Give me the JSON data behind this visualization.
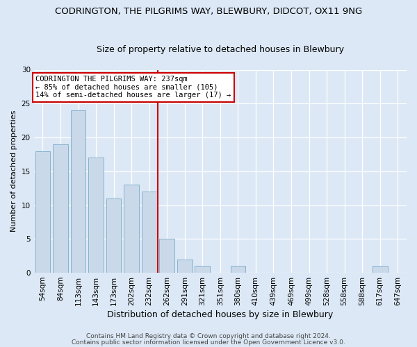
{
  "title": "CODRINGTON, THE PILGRIMS WAY, BLEWBURY, DIDCOT, OX11 9NG",
  "subtitle": "Size of property relative to detached houses in Blewbury",
  "xlabel": "Distribution of detached houses by size in Blewbury",
  "ylabel": "Number of detached properties",
  "categories": [
    "54sqm",
    "84sqm",
    "113sqm",
    "143sqm",
    "173sqm",
    "202sqm",
    "232sqm",
    "262sqm",
    "291sqm",
    "321sqm",
    "351sqm",
    "380sqm",
    "410sqm",
    "439sqm",
    "469sqm",
    "499sqm",
    "528sqm",
    "558sqm",
    "588sqm",
    "617sqm",
    "647sqm"
  ],
  "values": [
    18,
    19,
    24,
    17,
    11,
    13,
    12,
    5,
    2,
    1,
    0,
    1,
    0,
    0,
    0,
    0,
    0,
    0,
    0,
    1,
    0
  ],
  "bar_color": "#c9d9ea",
  "bar_edge_color": "#7aaac8",
  "vline_x_index": 6.5,
  "vline_color": "#cc0000",
  "annotation_text": "CODRINGTON THE PILGRIMS WAY: 237sqm\n← 85% of detached houses are smaller (105)\n14% of semi-detached houses are larger (17) →",
  "annotation_box_facecolor": "#ffffff",
  "annotation_box_edgecolor": "#cc0000",
  "ylim": [
    0,
    30
  ],
  "yticks": [
    0,
    5,
    10,
    15,
    20,
    25,
    30
  ],
  "footer1": "Contains HM Land Registry data © Crown copyright and database right 2024.",
  "footer2": "Contains public sector information licensed under the Open Government Licence v3.0.",
  "background_color": "#dce8f5",
  "title_fontsize": 9.5,
  "subtitle_fontsize": 9,
  "xlabel_fontsize": 9,
  "ylabel_fontsize": 8,
  "tick_fontsize": 7.5,
  "annot_fontsize": 7.5,
  "footer_fontsize": 6.5
}
